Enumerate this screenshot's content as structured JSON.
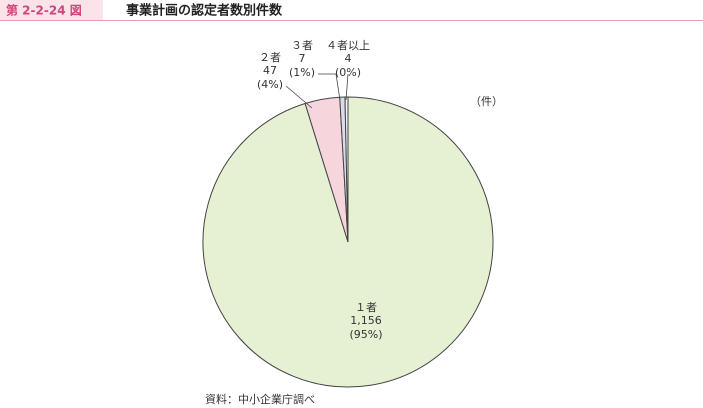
{
  "header": {
    "figure_number": "第 2-2-24 図",
    "title": "事業計画の認定者数別件数"
  },
  "chart_data": {
    "type": "pie",
    "unit": "（件）",
    "categories": [
      "１者",
      "２者",
      "３者",
      "４者以上"
    ],
    "values": [
      1156,
      47,
      7,
      4
    ],
    "value_labels": [
      "1,156",
      "47",
      "7",
      "4"
    ],
    "percent_labels": [
      "(95%)",
      "(4%)",
      "(1%)",
      "(0%)"
    ],
    "colors": [
      "#e6f0d2",
      "#f6d6dc",
      "#d9dcef",
      "#f4f4f8"
    ]
  },
  "source": "資料：中小企業庁調べ"
}
